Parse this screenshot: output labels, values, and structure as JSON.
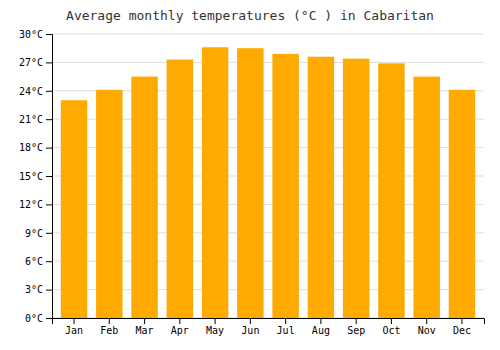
{
  "chart_data": {
    "type": "bar",
    "title": "Average monthly temperatures (°C ) in Cabaritan",
    "categories": [
      "Jan",
      "Feb",
      "Mar",
      "Apr",
      "May",
      "Jun",
      "Jul",
      "Aug",
      "Sep",
      "Oct",
      "Nov",
      "Dec"
    ],
    "values": [
      23.0,
      24.1,
      25.5,
      27.3,
      28.6,
      28.5,
      27.9,
      27.6,
      27.4,
      26.9,
      25.5,
      24.1
    ],
    "color": "#FFAA00",
    "ylim": [
      0,
      30
    ],
    "yticks": [
      {
        "value": 0,
        "label": "0°C"
      },
      {
        "value": 3,
        "label": "3°C"
      },
      {
        "value": 6,
        "label": "6°C"
      },
      {
        "value": 9,
        "label": "9°C"
      },
      {
        "value": 12,
        "label": "12°C"
      },
      {
        "value": 15,
        "label": "15°C"
      },
      {
        "value": 18,
        "label": "18°C"
      },
      {
        "value": 21,
        "label": "21°C"
      },
      {
        "value": 24,
        "label": "24°C"
      },
      {
        "value": 27,
        "label": "27°C"
      },
      {
        "value": 30,
        "label": "30°C"
      }
    ],
    "grid": true
  }
}
